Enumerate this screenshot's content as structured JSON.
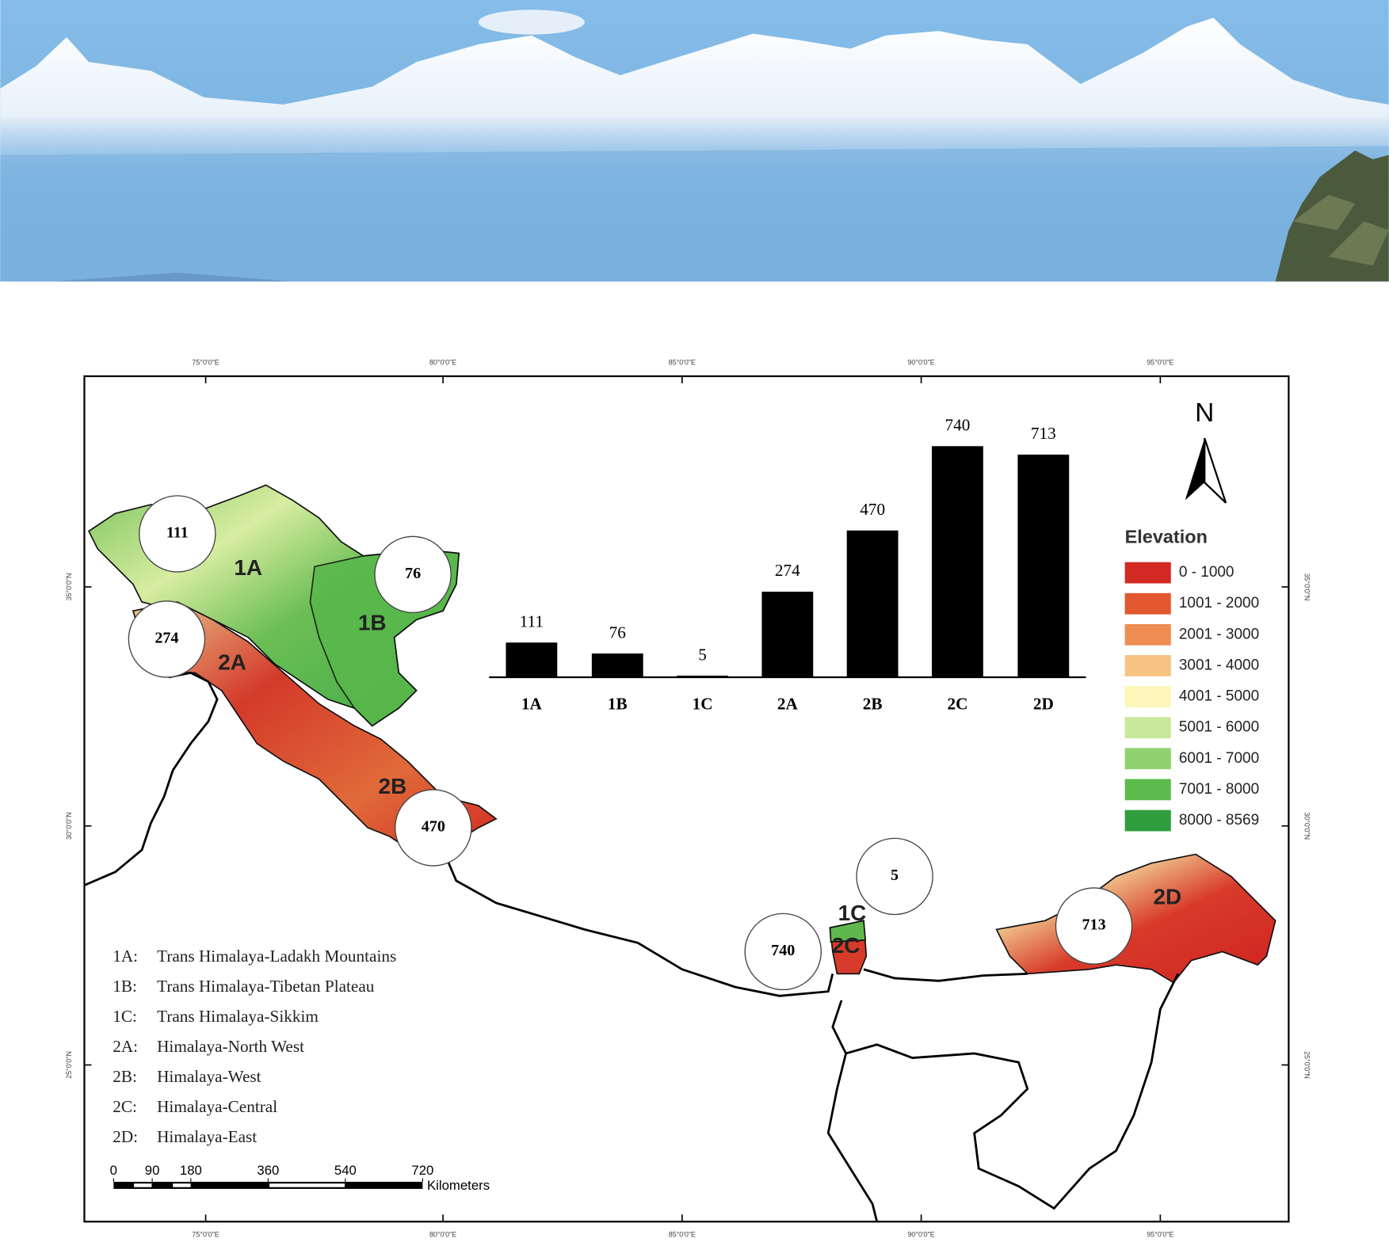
{
  "chart_data": {
    "type": "bar",
    "categories": [
      "1A",
      "1B",
      "1C",
      "2A",
      "2B",
      "2C",
      "2D"
    ],
    "values": [
      111,
      76,
      5,
      274,
      470,
      740,
      713
    ],
    "color": "#000000"
  },
  "map": {
    "longitude_labels": [
      "75°0'0\"E",
      "80°0'0\"E",
      "85°0'0\"E",
      "90°0'0\"E",
      "95°0'0\"E"
    ],
    "latitude_labels": [
      "35°0'0\"N",
      "30°0'0\"N",
      "25°0'0\"N"
    ],
    "north": "N",
    "elevation_legend": {
      "title": "Elevation",
      "entries": [
        {
          "label": "0 - 1000",
          "color": "#d42a24"
        },
        {
          "label": "1001 - 2000",
          "color": "#e2572f"
        },
        {
          "label": "2001 - 3000",
          "color": "#ee8c52"
        },
        {
          "label": "3001 - 4000",
          "color": "#f7c382"
        },
        {
          "label": "4001 - 5000",
          "color": "#fdf6b8"
        },
        {
          "label": "5001 - 6000",
          "color": "#c9e89b"
        },
        {
          "label": "6001 - 7000",
          "color": "#90d170"
        },
        {
          "label": "7001 - 8000",
          "color": "#5dba4c"
        },
        {
          "label": "8000 - 8569",
          "color": "#309e3f"
        }
      ]
    },
    "regions": [
      {
        "code": "1A:",
        "name": "Trans Himalaya-Ladakh Mountains"
      },
      {
        "code": "1B:",
        "name": "Trans Himalaya-Tibetan Plateau"
      },
      {
        "code": "1C:",
        "name": "Trans Himalaya-Sikkim"
      },
      {
        "code": "2A:",
        "name": "Himalaya-North West"
      },
      {
        "code": "2B:",
        "name": "Himalaya-West"
      },
      {
        "code": "2C:",
        "name": "Himalaya-Central"
      },
      {
        "code": "2D:",
        "name": "Himalaya-East"
      }
    ],
    "scale_bar": {
      "ticks": [
        0,
        90,
        180,
        360,
        540,
        720
      ],
      "unit": "Kilometers"
    }
  }
}
